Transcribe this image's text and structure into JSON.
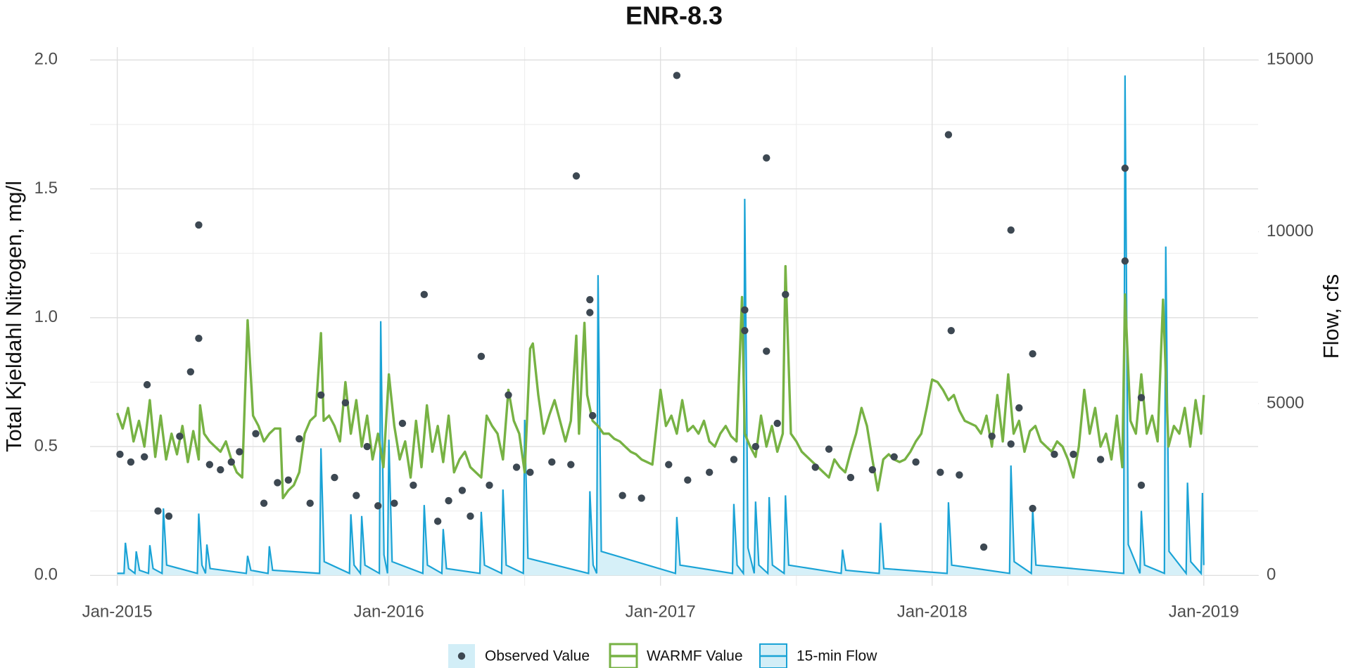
{
  "chart_data": {
    "type": "line",
    "title": "ENR-8.3",
    "y_label": "Total Kjeldahl Nitrogen, mg/l",
    "y2_label": "Flow, cfs",
    "xlim": [
      2014.9,
      2019.2
    ],
    "xticks": [
      {
        "value": 2015,
        "label": "Jan-2015"
      },
      {
        "value": 2016,
        "label": "Jan-2016"
      },
      {
        "value": 2017,
        "label": "Jan-2017"
      },
      {
        "value": 2018,
        "label": "Jan-2018"
      },
      {
        "value": 2019,
        "label": "Jan-2019"
      }
    ],
    "xminorticks": [
      2015.5,
      2016.5,
      2017.5,
      2018.5
    ],
    "ylim": [
      -0.04,
      2.05
    ],
    "yticks": [
      {
        "value": 0,
        "label": "0.0"
      },
      0.5,
      {
        "value": 1,
        "label": "1.0"
      },
      1.5,
      {
        "value": 2,
        "label": "2.0"
      }
    ],
    "yminorticks": [
      0.25,
      0.75,
      1.25,
      1.75
    ],
    "y2lim": [
      -300,
      15375
    ],
    "y2ticks": [
      0,
      5000,
      10000,
      15000
    ],
    "grid": true,
    "legend": "bottom",
    "series": [
      {
        "name": "Observed Value",
        "type": "scatter",
        "color": "#3d4852",
        "x": [
          2015.01,
          2015.05,
          2015.1,
          2015.11,
          2015.15,
          2015.19,
          2015.23,
          2015.27,
          2015.3,
          2015.3,
          2015.34,
          2015.38,
          2015.42,
          2015.45,
          2015.51,
          2015.54,
          2015.59,
          2015.63,
          2015.67,
          2015.71,
          2015.75,
          2015.8,
          2015.84,
          2015.88,
          2015.92,
          2015.96,
          2016.02,
          2016.05,
          2016.09,
          2016.13,
          2016.18,
          2016.22,
          2016.27,
          2016.3,
          2016.34,
          2016.37,
          2016.44,
          2016.47,
          2016.52,
          2016.6,
          2016.67,
          2016.69,
          2016.74,
          2016.74,
          2016.75,
          2016.86,
          2016.93,
          2017.03,
          2017.06,
          2017.1,
          2017.18,
          2017.27,
          2017.31,
          2017.31,
          2017.35,
          2017.39,
          2017.39,
          2017.43,
          2017.46,
          2017.57,
          2017.62,
          2017.7,
          2017.78,
          2017.86,
          2017.94,
          2018.03,
          2018.06,
          2018.07,
          2018.1,
          2018.19,
          2018.22,
          2018.29,
          2018.29,
          2018.32,
          2018.37,
          2018.37,
          2018.45,
          2018.52,
          2018.62,
          2018.71,
          2018.71,
          2018.77,
          2018.77
        ],
        "values": [
          0.47,
          0.44,
          0.46,
          0.74,
          0.25,
          0.23,
          0.54,
          0.79,
          1.36,
          0.92,
          0.43,
          0.41,
          0.44,
          0.48,
          0.55,
          0.28,
          0.36,
          0.37,
          0.53,
          0.28,
          0.7,
          0.38,
          0.67,
          0.31,
          0.5,
          0.27,
          0.28,
          0.59,
          0.35,
          1.09,
          0.21,
          0.29,
          0.33,
          0.23,
          0.85,
          0.35,
          0.7,
          0.42,
          0.4,
          0.44,
          0.43,
          1.55,
          1.07,
          1.02,
          0.62,
          0.31,
          0.3,
          0.43,
          1.94,
          0.37,
          0.4,
          0.45,
          1.03,
          0.95,
          0.5,
          0.87,
          1.62,
          0.59,
          1.09,
          0.42,
          0.49,
          0.38,
          0.41,
          0.46,
          0.44,
          0.4,
          1.71,
          0.95,
          0.39,
          0.11,
          0.54,
          1.34,
          0.51,
          0.65,
          0.26,
          0.86,
          0.47,
          0.47,
          0.45,
          1.58,
          1.22,
          0.35,
          0.69
        ]
      },
      {
        "name": "WARMF Value",
        "type": "line",
        "color": "#77b244",
        "x": [
          2015.0,
          2015.02,
          2015.04,
          2015.06,
          2015.08,
          2015.1,
          2015.12,
          2015.14,
          2015.16,
          2015.18,
          2015.2,
          2015.22,
          2015.24,
          2015.26,
          2015.28,
          2015.3,
          2015.305,
          2015.32,
          2015.34,
          2015.36,
          2015.38,
          2015.4,
          2015.42,
          2015.44,
          2015.46,
          2015.48,
          2015.5,
          2015.52,
          2015.54,
          2015.56,
          2015.58,
          2015.6,
          2015.61,
          2015.63,
          2015.65,
          2015.67,
          2015.69,
          2015.71,
          2015.73,
          2015.75,
          2015.76,
          2015.78,
          2015.8,
          2015.82,
          2015.84,
          2015.86,
          2015.88,
          2015.9,
          2015.92,
          2015.94,
          2015.96,
          2015.98,
          2016.0,
          2016.02,
          2016.04,
          2016.06,
          2016.08,
          2016.1,
          2016.12,
          2016.14,
          2016.16,
          2016.18,
          2016.2,
          2016.22,
          2016.24,
          2016.26,
          2016.28,
          2016.3,
          2016.32,
          2016.34,
          2016.36,
          2016.38,
          2016.4,
          2016.42,
          2016.44,
          2016.46,
          2016.48,
          2016.5,
          2016.52,
          2016.53,
          2016.55,
          2016.57,
          2016.59,
          2016.61,
          2016.63,
          2016.65,
          2016.67,
          2016.69,
          2016.7,
          2016.72,
          2016.73,
          2016.75,
          2016.77,
          2016.79,
          2016.81,
          2016.83,
          2016.85,
          2016.87,
          2016.89,
          2016.91,
          2016.93,
          2016.95,
          2016.97,
          2017.0,
          2017.02,
          2017.04,
          2017.06,
          2017.08,
          2017.1,
          2017.12,
          2017.14,
          2017.16,
          2017.18,
          2017.2,
          2017.22,
          2017.24,
          2017.26,
          2017.28,
          2017.3,
          2017.31,
          2017.33,
          2017.35,
          2017.37,
          2017.39,
          2017.41,
          2017.43,
          2017.45,
          2017.46,
          2017.48,
          2017.5,
          2017.52,
          2017.54,
          2017.56,
          2017.58,
          2017.6,
          2017.62,
          2017.64,
          2017.66,
          2017.68,
          2017.7,
          2017.72,
          2017.74,
          2017.76,
          2017.78,
          2017.8,
          2017.82,
          2017.84,
          2017.86,
          2017.88,
          2017.9,
          2017.92,
          2017.94,
          2017.96,
          2017.98,
          2018.0,
          2018.02,
          2018.04,
          2018.06,
          2018.08,
          2018.1,
          2018.12,
          2018.14,
          2018.16,
          2018.18,
          2018.2,
          2018.22,
          2018.24,
          2018.26,
          2018.28,
          2018.3,
          2018.32,
          2018.34,
          2018.36,
          2018.38,
          2018.4,
          2018.42,
          2018.44,
          2018.46,
          2018.48,
          2018.5,
          2018.52,
          2018.54,
          2018.56,
          2018.58,
          2018.6,
          2018.62,
          2018.64,
          2018.66,
          2018.68,
          2018.7,
          2018.71,
          2018.73,
          2018.75,
          2018.77,
          2018.79,
          2018.81,
          2018.83,
          2018.85,
          2018.87,
          2018.89,
          2018.91,
          2018.93,
          2018.95,
          2018.97,
          2018.99,
          2019.0
        ],
        "values": [
          0.63,
          0.57,
          0.65,
          0.52,
          0.6,
          0.5,
          0.68,
          0.46,
          0.62,
          0.45,
          0.55,
          0.47,
          0.58,
          0.44,
          0.56,
          0.45,
          0.66,
          0.55,
          0.52,
          0.5,
          0.48,
          0.52,
          0.45,
          0.4,
          0.38,
          0.99,
          0.62,
          0.58,
          0.52,
          0.55,
          0.57,
          0.57,
          0.3,
          0.33,
          0.35,
          0.4,
          0.55,
          0.6,
          0.62,
          0.94,
          0.6,
          0.62,
          0.58,
          0.52,
          0.75,
          0.55,
          0.68,
          0.5,
          0.62,
          0.45,
          0.55,
          0.42,
          0.78,
          0.58,
          0.45,
          0.52,
          0.38,
          0.6,
          0.42,
          0.66,
          0.48,
          0.58,
          0.44,
          0.62,
          0.4,
          0.45,
          0.48,
          0.42,
          0.4,
          0.38,
          0.62,
          0.58,
          0.55,
          0.45,
          0.72,
          0.6,
          0.55,
          0.4,
          0.88,
          0.9,
          0.7,
          0.55,
          0.62,
          0.68,
          0.6,
          0.52,
          0.6,
          0.93,
          0.55,
          0.98,
          0.7,
          0.6,
          0.58,
          0.55,
          0.55,
          0.53,
          0.52,
          0.5,
          0.48,
          0.47,
          0.45,
          0.44,
          0.43,
          0.72,
          0.58,
          0.62,
          0.55,
          0.68,
          0.56,
          0.58,
          0.55,
          0.6,
          0.52,
          0.5,
          0.55,
          0.58,
          0.54,
          0.52,
          1.08,
          0.55,
          0.5,
          0.46,
          0.62,
          0.5,
          0.58,
          0.48,
          0.55,
          1.2,
          0.55,
          0.52,
          0.48,
          0.46,
          0.44,
          0.42,
          0.4,
          0.38,
          0.45,
          0.42,
          0.4,
          0.48,
          0.55,
          0.65,
          0.58,
          0.45,
          0.33,
          0.45,
          0.47,
          0.45,
          0.44,
          0.45,
          0.48,
          0.52,
          0.55,
          0.65,
          0.76,
          0.75,
          0.72,
          0.68,
          0.7,
          0.64,
          0.6,
          0.59,
          0.58,
          0.55,
          0.62,
          0.5,
          0.7,
          0.52,
          0.78,
          0.55,
          0.6,
          0.48,
          0.56,
          0.58,
          0.52,
          0.5,
          0.48,
          0.52,
          0.5,
          0.45,
          0.38,
          0.5,
          0.72,
          0.55,
          0.65,
          0.5,
          0.55,
          0.45,
          0.62,
          0.42,
          1.09,
          0.6,
          0.55,
          0.78,
          0.55,
          0.62,
          0.52,
          1.07,
          0.5,
          0.58,
          0.55,
          0.65,
          0.5,
          0.68,
          0.55,
          0.7
        ]
      },
      {
        "name": "15-min Flow",
        "type": "area",
        "axis": "y2",
        "color": "#1aa3d6",
        "fill": "#d2eef7",
        "x": [
          2015.0,
          2015.025,
          2015.03,
          2015.042,
          2015.065,
          2015.07,
          2015.082,
          2015.115,
          2015.12,
          2015.132,
          2015.165,
          2015.17,
          2015.182,
          2015.295,
          2015.3,
          2015.312,
          2015.325,
          2015.33,
          2015.342,
          2015.475,
          2015.48,
          2015.492,
          2015.555,
          2015.56,
          2015.572,
          2015.745,
          2015.75,
          2015.762,
          2015.855,
          2015.86,
          2015.872,
          2015.895,
          2015.9,
          2015.912,
          2015.965,
          2015.97,
          2015.982,
          2015.995,
          2016.0,
          2016.012,
          2016.125,
          2016.13,
          2016.142,
          2016.195,
          2016.2,
          2016.212,
          2016.335,
          2016.34,
          2016.352,
          2016.415,
          2016.42,
          2016.432,
          2016.495,
          2016.5,
          2016.512,
          2016.735,
          2016.74,
          2016.752,
          2016.765,
          2016.77,
          2016.782,
          2017.055,
          2017.06,
          2017.072,
          2017.265,
          2017.27,
          2017.282,
          2017.305,
          2017.31,
          2017.322,
          2017.345,
          2017.35,
          2017.362,
          2017.395,
          2017.4,
          2017.412,
          2017.455,
          2017.46,
          2017.472,
          2017.665,
          2017.67,
          2017.682,
          2017.805,
          2017.81,
          2017.822,
          2018.055,
          2018.06,
          2018.072,
          2018.285,
          2018.29,
          2018.302,
          2018.365,
          2018.37,
          2018.382,
          2018.705,
          2018.71,
          2018.722,
          2018.765,
          2018.77,
          2018.782,
          2018.855,
          2018.86,
          2018.872,
          2018.935,
          2018.94,
          2018.952,
          2018.99,
          2018.995,
          2019.0
        ],
        "values": [
          60,
          60,
          950,
          200,
          60,
          700,
          150,
          60,
          880,
          200,
          60,
          1950,
          300,
          60,
          1800,
          300,
          60,
          900,
          200,
          60,
          570,
          150,
          60,
          850,
          150,
          60,
          3700,
          400,
          60,
          1780,
          300,
          60,
          1730,
          300,
          60,
          7400,
          600,
          60,
          3950,
          400,
          60,
          2050,
          300,
          60,
          1350,
          200,
          60,
          1850,
          300,
          60,
          2500,
          300,
          60,
          4530,
          500,
          60,
          2450,
          300,
          60,
          8740,
          700,
          60,
          1700,
          300,
          60,
          2080,
          300,
          60,
          10960,
          800,
          60,
          2150,
          300,
          60,
          2280,
          300,
          60,
          2330,
          300,
          60,
          750,
          150,
          60,
          1530,
          200,
          60,
          2130,
          300,
          60,
          3200,
          400,
          60,
          1950,
          300,
          60,
          14550,
          900,
          60,
          1880,
          300,
          60,
          9570,
          700,
          60,
          2700,
          400,
          60,
          2400,
          300
        ]
      }
    ]
  }
}
